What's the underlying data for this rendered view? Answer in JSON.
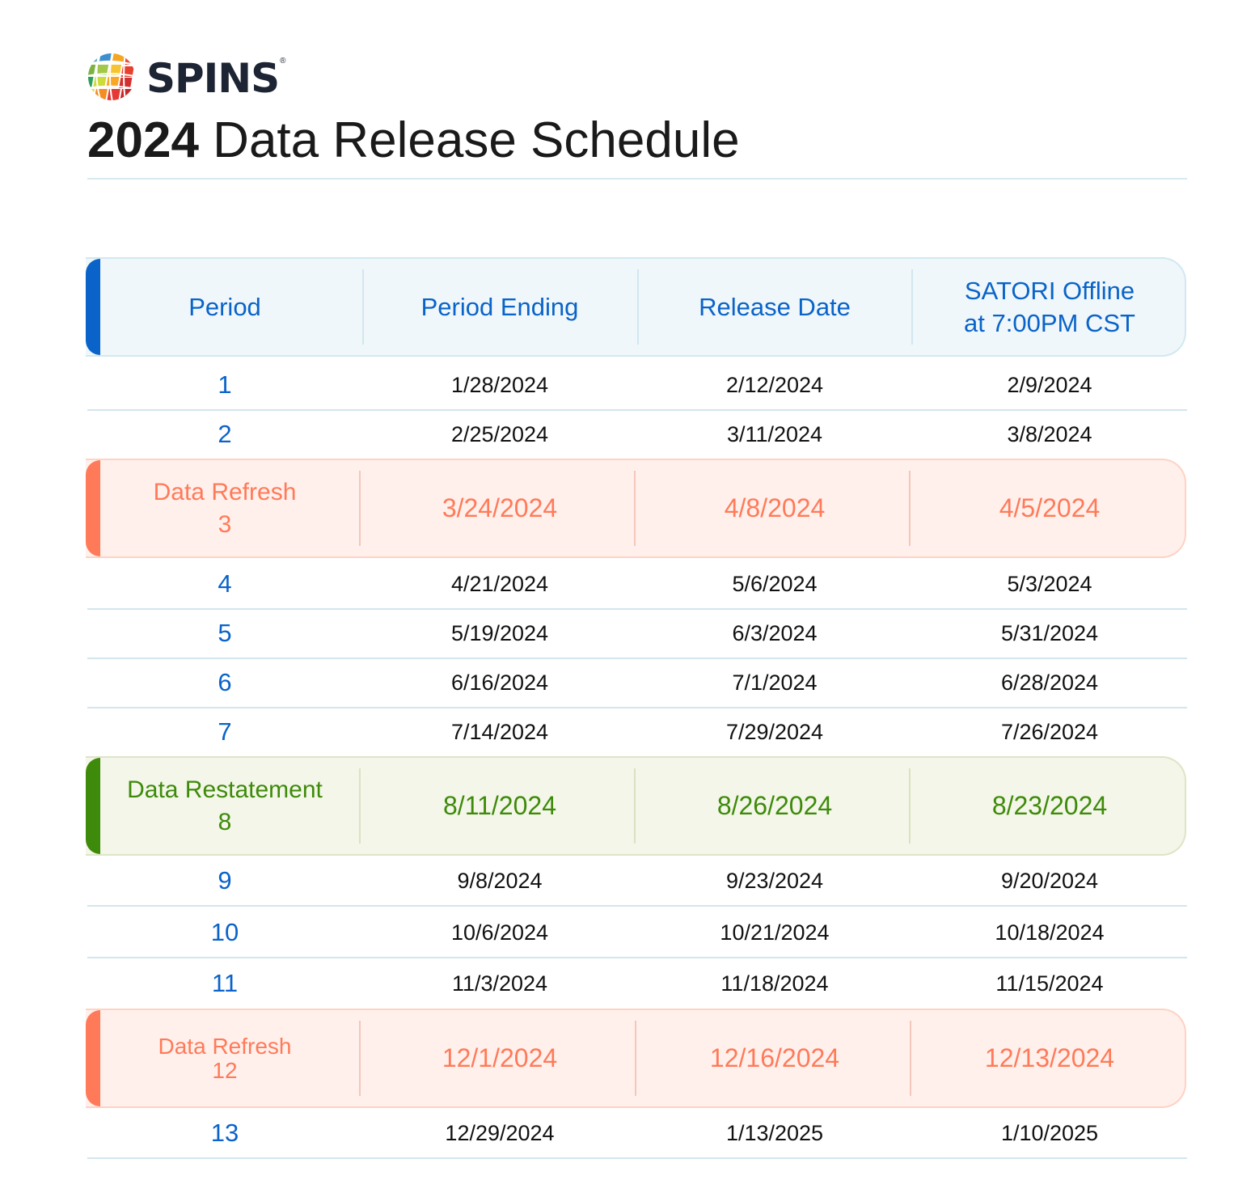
{
  "brand": {
    "name": "SPINS",
    "registered": "®"
  },
  "title": {
    "year": "2024",
    "rest": " Data Release Schedule"
  },
  "table": {
    "headers": [
      "Period",
      "Period Ending",
      "Release Date",
      "SATORI Offline",
      "at 7:00PM CST"
    ],
    "rows": [
      {
        "period": "1",
        "ending": "1/28/2024",
        "release": "2/12/2024",
        "offline": "2/9/2024"
      },
      {
        "period": "2",
        "ending": "2/25/2024",
        "release": "3/11/2024",
        "offline": "3/8/2024"
      },
      {
        "label": "Data Refresh",
        "period": "3",
        "ending": "3/24/2024",
        "release": "4/8/2024",
        "offline": "4/5/2024",
        "type": "refresh"
      },
      {
        "period": "4",
        "ending": "4/21/2024",
        "release": "5/6/2024",
        "offline": "5/3/2024"
      },
      {
        "period": "5",
        "ending": "5/19/2024",
        "release": "6/3/2024",
        "offline": "5/31/2024"
      },
      {
        "period": "6",
        "ending": "6/16/2024",
        "release": "7/1/2024",
        "offline": "6/28/2024"
      },
      {
        "period": "7",
        "ending": "7/14/2024",
        "release": "7/29/2024",
        "offline": "7/26/2024"
      },
      {
        "label": "Data Restatement",
        "period": "8",
        "ending": "8/11/2024",
        "release": "8/26/2024",
        "offline": "8/23/2024",
        "type": "restatement"
      },
      {
        "period": "9",
        "ending": "9/8/2024",
        "release": "9/23/2024",
        "offline": "9/20/2024"
      },
      {
        "period": "10",
        "ending": "10/6/2024",
        "release": "10/21/2024",
        "offline": "10/18/2024"
      },
      {
        "period": "11",
        "ending": "11/3/2024",
        "release": "11/18/2024",
        "offline": "11/15/2024"
      },
      {
        "label": "Data Refresh",
        "period": "12",
        "ending": "12/1/2024",
        "release": "12/16/2024",
        "offline": "12/13/2024",
        "type": "refresh"
      },
      {
        "period": "13",
        "ending": "12/29/2024",
        "release": "1/13/2025",
        "offline": "1/10/2025"
      }
    ]
  },
  "colors": {
    "header_accent": "#0a63c9",
    "refresh_accent": "#ff7a59",
    "restatement_accent": "#3e8a0a",
    "period_number": "#0a63c9"
  }
}
